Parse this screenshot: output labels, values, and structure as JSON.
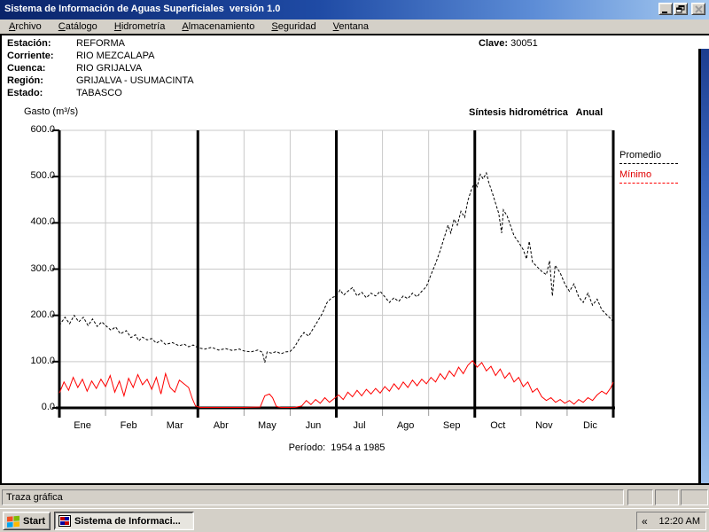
{
  "window": {
    "title": "Sistema de Información de Aguas Superficiales  versión 1.0"
  },
  "menu": {
    "items": [
      {
        "label": "Archivo",
        "accel": 0
      },
      {
        "label": "Catálogo",
        "accel": 0
      },
      {
        "label": "Hidrometría",
        "accel": 0
      },
      {
        "label": "Almacenamiento",
        "accel": 0
      },
      {
        "label": "Seguridad",
        "accel": 0
      },
      {
        "label": "Ventana",
        "accel": 0
      }
    ]
  },
  "station": {
    "fields": [
      {
        "label": "Estación:",
        "value": "REFORMA"
      },
      {
        "label": "Corriente:",
        "value": "RIO MEZCALAPA"
      },
      {
        "label": "Cuenca:",
        "value": "RIO GRIJALVA"
      },
      {
        "label": "Región:",
        "value": "GRIJALVA - USUMACINTA"
      },
      {
        "label": "Estado:",
        "value": "TABASCO"
      }
    ],
    "clave_label": "Clave:",
    "clave_value": "30051"
  },
  "chart_data": {
    "type": "line",
    "title": "Síntesis hidrométrica   Anual",
    "ylabel": "Gasto (m³/s)",
    "period_label": "Período:  1954 a 1985",
    "categories": [
      "Ene",
      "Feb",
      "Mar",
      "Abr",
      "May",
      "Jun",
      "Jul",
      "Ago",
      "Sep",
      "Oct",
      "Nov",
      "Dic"
    ],
    "ytick_labels": [
      "600.0",
      "500.0",
      "400.0",
      "300.0",
      "200.0",
      "100.0",
      "0.0"
    ],
    "ytick_values": [
      600,
      500,
      400,
      300,
      200,
      100,
      0
    ],
    "ylim": [
      0,
      600
    ],
    "grid": true,
    "legend_position": "right",
    "quarter_separators_every": 3,
    "colors": {
      "promedio": "#000000",
      "minimo": "#ff0000",
      "grid": "#c9c9c9",
      "axis": "#000000"
    },
    "series": [
      {
        "name": "Promedio",
        "color": "#000000",
        "style": "dashed",
        "points": [
          [
            0,
            178
          ],
          [
            0.12,
            196
          ],
          [
            0.22,
            182
          ],
          [
            0.32,
            200
          ],
          [
            0.42,
            186
          ],
          [
            0.52,
            196
          ],
          [
            0.62,
            178
          ],
          [
            0.72,
            192
          ],
          [
            0.82,
            176
          ],
          [
            0.92,
            186
          ],
          [
            1.0,
            178
          ],
          [
            1.12,
            168
          ],
          [
            1.22,
            175
          ],
          [
            1.32,
            160
          ],
          [
            1.45,
            167
          ],
          [
            1.55,
            152
          ],
          [
            1.65,
            158
          ],
          [
            1.72,
            145
          ],
          [
            1.8,
            153
          ],
          [
            1.9,
            147
          ],
          [
            2.0,
            150
          ],
          [
            2.1,
            140
          ],
          [
            2.2,
            146
          ],
          [
            2.3,
            137
          ],
          [
            2.45,
            141
          ],
          [
            2.6,
            134
          ],
          [
            2.7,
            138
          ],
          [
            2.8,
            132
          ],
          [
            2.9,
            136
          ],
          [
            3.0,
            130
          ],
          [
            3.15,
            127
          ],
          [
            3.3,
            131
          ],
          [
            3.45,
            125
          ],
          [
            3.6,
            128
          ],
          [
            3.75,
            124
          ],
          [
            3.9,
            127
          ],
          [
            4.0,
            123
          ],
          [
            4.15,
            121
          ],
          [
            4.3,
            125
          ],
          [
            4.4,
            120
          ],
          [
            4.45,
            98
          ],
          [
            4.5,
            121
          ],
          [
            4.6,
            118
          ],
          [
            4.7,
            122
          ],
          [
            4.8,
            117
          ],
          [
            4.9,
            121
          ],
          [
            5.0,
            122
          ],
          [
            5.1,
            132
          ],
          [
            5.2,
            150
          ],
          [
            5.3,
            163
          ],
          [
            5.4,
            155
          ],
          [
            5.5,
            172
          ],
          [
            5.6,
            188
          ],
          [
            5.7,
            205
          ],
          [
            5.8,
            228
          ],
          [
            5.9,
            238
          ],
          [
            6.0,
            242
          ],
          [
            6.08,
            255
          ],
          [
            6.16,
            244
          ],
          [
            6.25,
            252
          ],
          [
            6.35,
            260
          ],
          [
            6.45,
            242
          ],
          [
            6.55,
            250
          ],
          [
            6.65,
            238
          ],
          [
            6.75,
            248
          ],
          [
            6.85,
            242
          ],
          [
            6.95,
            252
          ],
          [
            7.05,
            240
          ],
          [
            7.15,
            228
          ],
          [
            7.25,
            238
          ],
          [
            7.35,
            230
          ],
          [
            7.45,
            242
          ],
          [
            7.55,
            236
          ],
          [
            7.65,
            248
          ],
          [
            7.75,
            240
          ],
          [
            7.85,
            252
          ],
          [
            7.95,
            262
          ],
          [
            8.05,
            288
          ],
          [
            8.15,
            312
          ],
          [
            8.25,
            340
          ],
          [
            8.35,
            372
          ],
          [
            8.42,
            395
          ],
          [
            8.48,
            378
          ],
          [
            8.55,
            408
          ],
          [
            8.62,
            395
          ],
          [
            8.7,
            425
          ],
          [
            8.78,
            412
          ],
          [
            8.85,
            448
          ],
          [
            8.92,
            470
          ],
          [
            9.0,
            488
          ],
          [
            9.05,
            478
          ],
          [
            9.12,
            505
          ],
          [
            9.18,
            495
          ],
          [
            9.25,
            508
          ],
          [
            9.3,
            488
          ],
          [
            9.38,
            465
          ],
          [
            9.45,
            442
          ],
          [
            9.52,
            420
          ],
          [
            9.58,
            378
          ],
          [
            9.62,
            428
          ],
          [
            9.7,
            415
          ],
          [
            9.78,
            392
          ],
          [
            9.85,
            372
          ],
          [
            9.95,
            358
          ],
          [
            10.05,
            342
          ],
          [
            10.12,
            322
          ],
          [
            10.18,
            360
          ],
          [
            10.25,
            315
          ],
          [
            10.35,
            305
          ],
          [
            10.45,
            295
          ],
          [
            10.55,
            288
          ],
          [
            10.62,
            318
          ],
          [
            10.68,
            242
          ],
          [
            10.74,
            308
          ],
          [
            10.85,
            292
          ],
          [
            10.95,
            268
          ],
          [
            11.05,
            252
          ],
          [
            11.15,
            268
          ],
          [
            11.25,
            240
          ],
          [
            11.35,
            228
          ],
          [
            11.45,
            248
          ],
          [
            11.55,
            222
          ],
          [
            11.65,
            235
          ],
          [
            11.75,
            212
          ],
          [
            11.85,
            202
          ],
          [
            11.95,
            192
          ],
          [
            12,
            186
          ]
        ]
      },
      {
        "name": "Mínimo",
        "color": "#ff0000",
        "style": "solid",
        "points": [
          [
            0,
            32
          ],
          [
            0.1,
            56
          ],
          [
            0.2,
            38
          ],
          [
            0.3,
            66
          ],
          [
            0.4,
            44
          ],
          [
            0.5,
            62
          ],
          [
            0.6,
            36
          ],
          [
            0.7,
            58
          ],
          [
            0.8,
            42
          ],
          [
            0.9,
            62
          ],
          [
            1.0,
            46
          ],
          [
            1.1,
            70
          ],
          [
            1.2,
            34
          ],
          [
            1.3,
            58
          ],
          [
            1.4,
            26
          ],
          [
            1.5,
            64
          ],
          [
            1.6,
            44
          ],
          [
            1.7,
            72
          ],
          [
            1.8,
            50
          ],
          [
            1.9,
            62
          ],
          [
            2.0,
            40
          ],
          [
            2.1,
            66
          ],
          [
            2.2,
            30
          ],
          [
            2.3,
            74
          ],
          [
            2.4,
            44
          ],
          [
            2.5,
            34
          ],
          [
            2.6,
            60
          ],
          [
            2.7,
            52
          ],
          [
            2.8,
            44
          ],
          [
            2.88,
            20
          ],
          [
            2.95,
            4
          ],
          [
            3.05,
            1
          ],
          [
            3.5,
            1
          ],
          [
            4.0,
            1
          ],
          [
            4.35,
            2
          ],
          [
            4.45,
            26
          ],
          [
            4.55,
            30
          ],
          [
            4.62,
            22
          ],
          [
            4.7,
            3
          ],
          [
            4.8,
            1
          ],
          [
            5.1,
            1
          ],
          [
            5.25,
            4
          ],
          [
            5.35,
            16
          ],
          [
            5.45,
            7
          ],
          [
            5.55,
            18
          ],
          [
            5.65,
            10
          ],
          [
            5.75,
            22
          ],
          [
            5.85,
            12
          ],
          [
            5.95,
            20
          ],
          [
            6.05,
            28
          ],
          [
            6.15,
            18
          ],
          [
            6.25,
            34
          ],
          [
            6.35,
            24
          ],
          [
            6.45,
            38
          ],
          [
            6.55,
            26
          ],
          [
            6.65,
            40
          ],
          [
            6.75,
            30
          ],
          [
            6.85,
            42
          ],
          [
            6.95,
            32
          ],
          [
            7.05,
            46
          ],
          [
            7.15,
            36
          ],
          [
            7.25,
            52
          ],
          [
            7.35,
            40
          ],
          [
            7.45,
            56
          ],
          [
            7.55,
            44
          ],
          [
            7.65,
            60
          ],
          [
            7.75,
            48
          ],
          [
            7.85,
            62
          ],
          [
            7.95,
            52
          ],
          [
            8.05,
            66
          ],
          [
            8.15,
            56
          ],
          [
            8.25,
            74
          ],
          [
            8.35,
            62
          ],
          [
            8.45,
            80
          ],
          [
            8.55,
            68
          ],
          [
            8.65,
            88
          ],
          [
            8.75,
            74
          ],
          [
            8.85,
            92
          ],
          [
            8.95,
            102
          ],
          [
            9.05,
            88
          ],
          [
            9.15,
            98
          ],
          [
            9.25,
            80
          ],
          [
            9.35,
            90
          ],
          [
            9.45,
            70
          ],
          [
            9.55,
            84
          ],
          [
            9.65,
            64
          ],
          [
            9.75,
            76
          ],
          [
            9.85,
            56
          ],
          [
            9.95,
            66
          ],
          [
            10.05,
            46
          ],
          [
            10.15,
            56
          ],
          [
            10.25,
            34
          ],
          [
            10.35,
            42
          ],
          [
            10.45,
            24
          ],
          [
            10.55,
            16
          ],
          [
            10.65,
            22
          ],
          [
            10.75,
            12
          ],
          [
            10.85,
            18
          ],
          [
            10.95,
            10
          ],
          [
            11.05,
            16
          ],
          [
            11.15,
            8
          ],
          [
            11.25,
            18
          ],
          [
            11.35,
            12
          ],
          [
            11.45,
            22
          ],
          [
            11.55,
            16
          ],
          [
            11.65,
            28
          ],
          [
            11.75,
            36
          ],
          [
            11.85,
            30
          ],
          [
            11.95,
            44
          ],
          [
            12,
            56
          ]
        ]
      }
    ]
  },
  "statusbar": {
    "text": "Traza gráfica"
  },
  "taskbar": {
    "start_label": "Start",
    "task_label": "Sistema de Informaci...",
    "tray_chevron": "«",
    "clock": "12:20 AM"
  }
}
